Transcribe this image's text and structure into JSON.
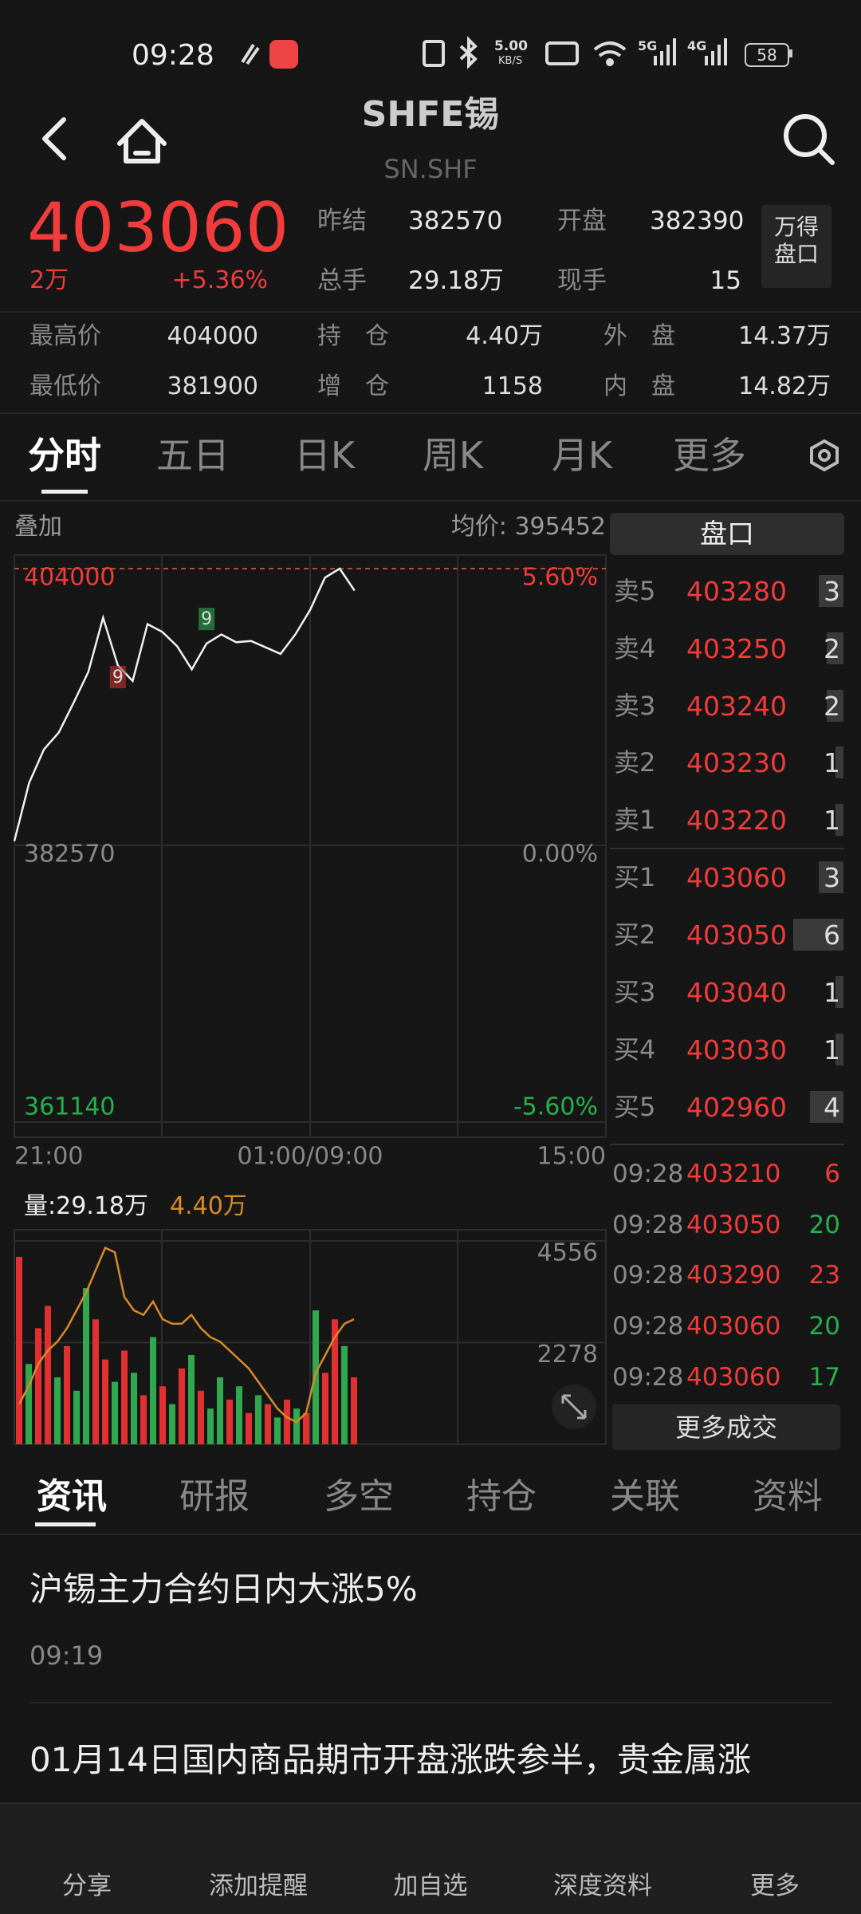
{
  "status_bar": {
    "time": "09:28",
    "net_speed": "5.00",
    "net_unit": "KB/S",
    "network": "5G",
    "network2": "4G",
    "battery": "58"
  },
  "header": {
    "title": "SHFE锡",
    "subtitle": "SN.SHF"
  },
  "quote": {
    "price": "403060",
    "last_volume": "2万",
    "change_pct": "+5.36%",
    "fields": [
      {
        "label": "昨结",
        "value": "382570"
      },
      {
        "label": "开盘",
        "value": "382390"
      },
      {
        "label": "总手",
        "value": "29.18万"
      },
      {
        "label": "现手",
        "value": "15"
      }
    ],
    "button": [
      "万得",
      "盘口"
    ],
    "stats": [
      {
        "label": "最高价",
        "value": "404000"
      },
      {
        "label": "持　仓",
        "value": "4.40万"
      },
      {
        "label": "外　盘",
        "value": "14.37万"
      },
      {
        "label": "最低价",
        "value": "381900"
      },
      {
        "label": "增　仓",
        "value": "1158"
      },
      {
        "label": "内　盘",
        "value": "14.82万"
      }
    ]
  },
  "chart_tabs": [
    "分时",
    "五日",
    "日K",
    "周K",
    "月K",
    "更多"
  ],
  "intraday": {
    "overlay": "叠加",
    "avg_label": "均价:",
    "avg_value": "395452",
    "ylim": [
      361140,
      404000
    ],
    "yticks": [
      404000,
      382570,
      361140
    ],
    "y2lim": [
      -5.6,
      5.6
    ],
    "y2ticks": [
      {
        "value": 5.6,
        "label": "5.60%"
      },
      {
        "value": 0,
        "label": "0.00%"
      },
      {
        "value": -5.6,
        "label": "-5.60%"
      }
    ],
    "xlabels": [
      "21:00",
      "01:00/09:00",
      "15:00"
    ],
    "values": [
      382900,
      387400,
      390000,
      391300,
      393600,
      396000,
      400200,
      396500,
      395300,
      399700,
      399100,
      398000,
      396200,
      398200,
      398900,
      398300,
      398400,
      397900,
      397400,
      398900,
      400800,
      403300,
      404000,
      402300
    ],
    "markers": [
      {
        "label": "9",
        "x": 13,
        "value": 400100,
        "color": "#2fa84f"
      },
      {
        "label": "9",
        "x": 7,
        "value": 395600,
        "color": "#c83232"
      }
    ]
  },
  "volume": {
    "label": "量:29.18万",
    "oi_label": "4.40万",
    "ylim": [
      0,
      4556
    ],
    "yticks": [
      4556,
      2278
    ],
    "values": [
      4200,
      1800,
      2600,
      3100,
      1500,
      2200,
      1200,
      3500,
      2800,
      1900,
      1400,
      2100,
      1600,
      1100,
      2400,
      1300,
      900,
      1700,
      2000,
      1200,
      800,
      1500,
      1000,
      1300,
      700,
      1100,
      900,
      600,
      1000,
      800,
      700,
      3000,
      1600,
      2800,
      2200,
      1500
    ],
    "colors": [
      "#e23030",
      "#2fa84f",
      "#e23030",
      "#e23030",
      "#2fa84f",
      "#e23030",
      "#2fa84f",
      "#2fa84f",
      "#e23030",
      "#e23030",
      "#2fa84f",
      "#e23030",
      "#2fa84f",
      "#e23030",
      "#2fa84f",
      "#e23030",
      "#2fa84f",
      "#e23030",
      "#2fa84f",
      "#e23030",
      "#2fa84f",
      "#2fa84f",
      "#e23030",
      "#2fa84f",
      "#e23030",
      "#2fa84f",
      "#e23030",
      "#2fa84f",
      "#e23030",
      "#2fa84f",
      "#e23030",
      "#2fa84f",
      "#e23030",
      "#e23030",
      "#2fa84f",
      "#e23030"
    ],
    "oi_values": [
      900,
      1300,
      1800,
      2100,
      2300,
      2600,
      3000,
      3400,
      3900,
      4400,
      4300,
      3300,
      3000,
      2900,
      3200,
      2800,
      2700,
      2700,
      2900,
      2600,
      2400,
      2300,
      2100,
      1900,
      1700,
      1400,
      1100,
      800,
      600,
      500,
      700,
      1600,
      2000,
      2400,
      2700,
      2800
    ],
    "oi_color": "#d98a2b"
  },
  "order_book": {
    "title": "盘口",
    "asks": [
      {
        "label": "卖5",
        "price": "403280",
        "qty": 3
      },
      {
        "label": "卖4",
        "price": "403250",
        "qty": 2
      },
      {
        "label": "卖3",
        "price": "403240",
        "qty": 2
      },
      {
        "label": "卖2",
        "price": "403230",
        "qty": 1
      },
      {
        "label": "卖1",
        "price": "403220",
        "qty": 1
      }
    ],
    "bids": [
      {
        "label": "买1",
        "price": "403060",
        "qty": 3
      },
      {
        "label": "买2",
        "price": "403050",
        "qty": 6
      },
      {
        "label": "买3",
        "price": "403040",
        "qty": 1
      },
      {
        "label": "买4",
        "price": "403030",
        "qty": 1
      },
      {
        "label": "买5",
        "price": "402960",
        "qty": 4
      }
    ],
    "trades": [
      {
        "time": "09:28",
        "price": "403210",
        "qty": "6",
        "color": "#f23b3b"
      },
      {
        "time": "09:28",
        "price": "403050",
        "qty": "20",
        "color": "#27b04b"
      },
      {
        "time": "09:28",
        "price": "403290",
        "qty": "23",
        "color": "#f23b3b"
      },
      {
        "time": "09:28",
        "price": "403060",
        "qty": "20",
        "color": "#27b04b"
      },
      {
        "time": "09:28",
        "price": "403060",
        "qty": "17",
        "color": "#27b04b"
      }
    ],
    "more": "更多成交"
  },
  "news_tabs": [
    "资讯",
    "研报",
    "多空",
    "持仓",
    "关联",
    "资料"
  ],
  "news": [
    {
      "title": "沪锡主力合约日内大涨5%",
      "time": "09:19"
    },
    {
      "title": "01月14日国内商品期市开盘涨跌参半，贵金属涨"
    }
  ],
  "bottom_nav": [
    "分享",
    "添加提醒",
    "加自选",
    "深度资料",
    "更多"
  ]
}
